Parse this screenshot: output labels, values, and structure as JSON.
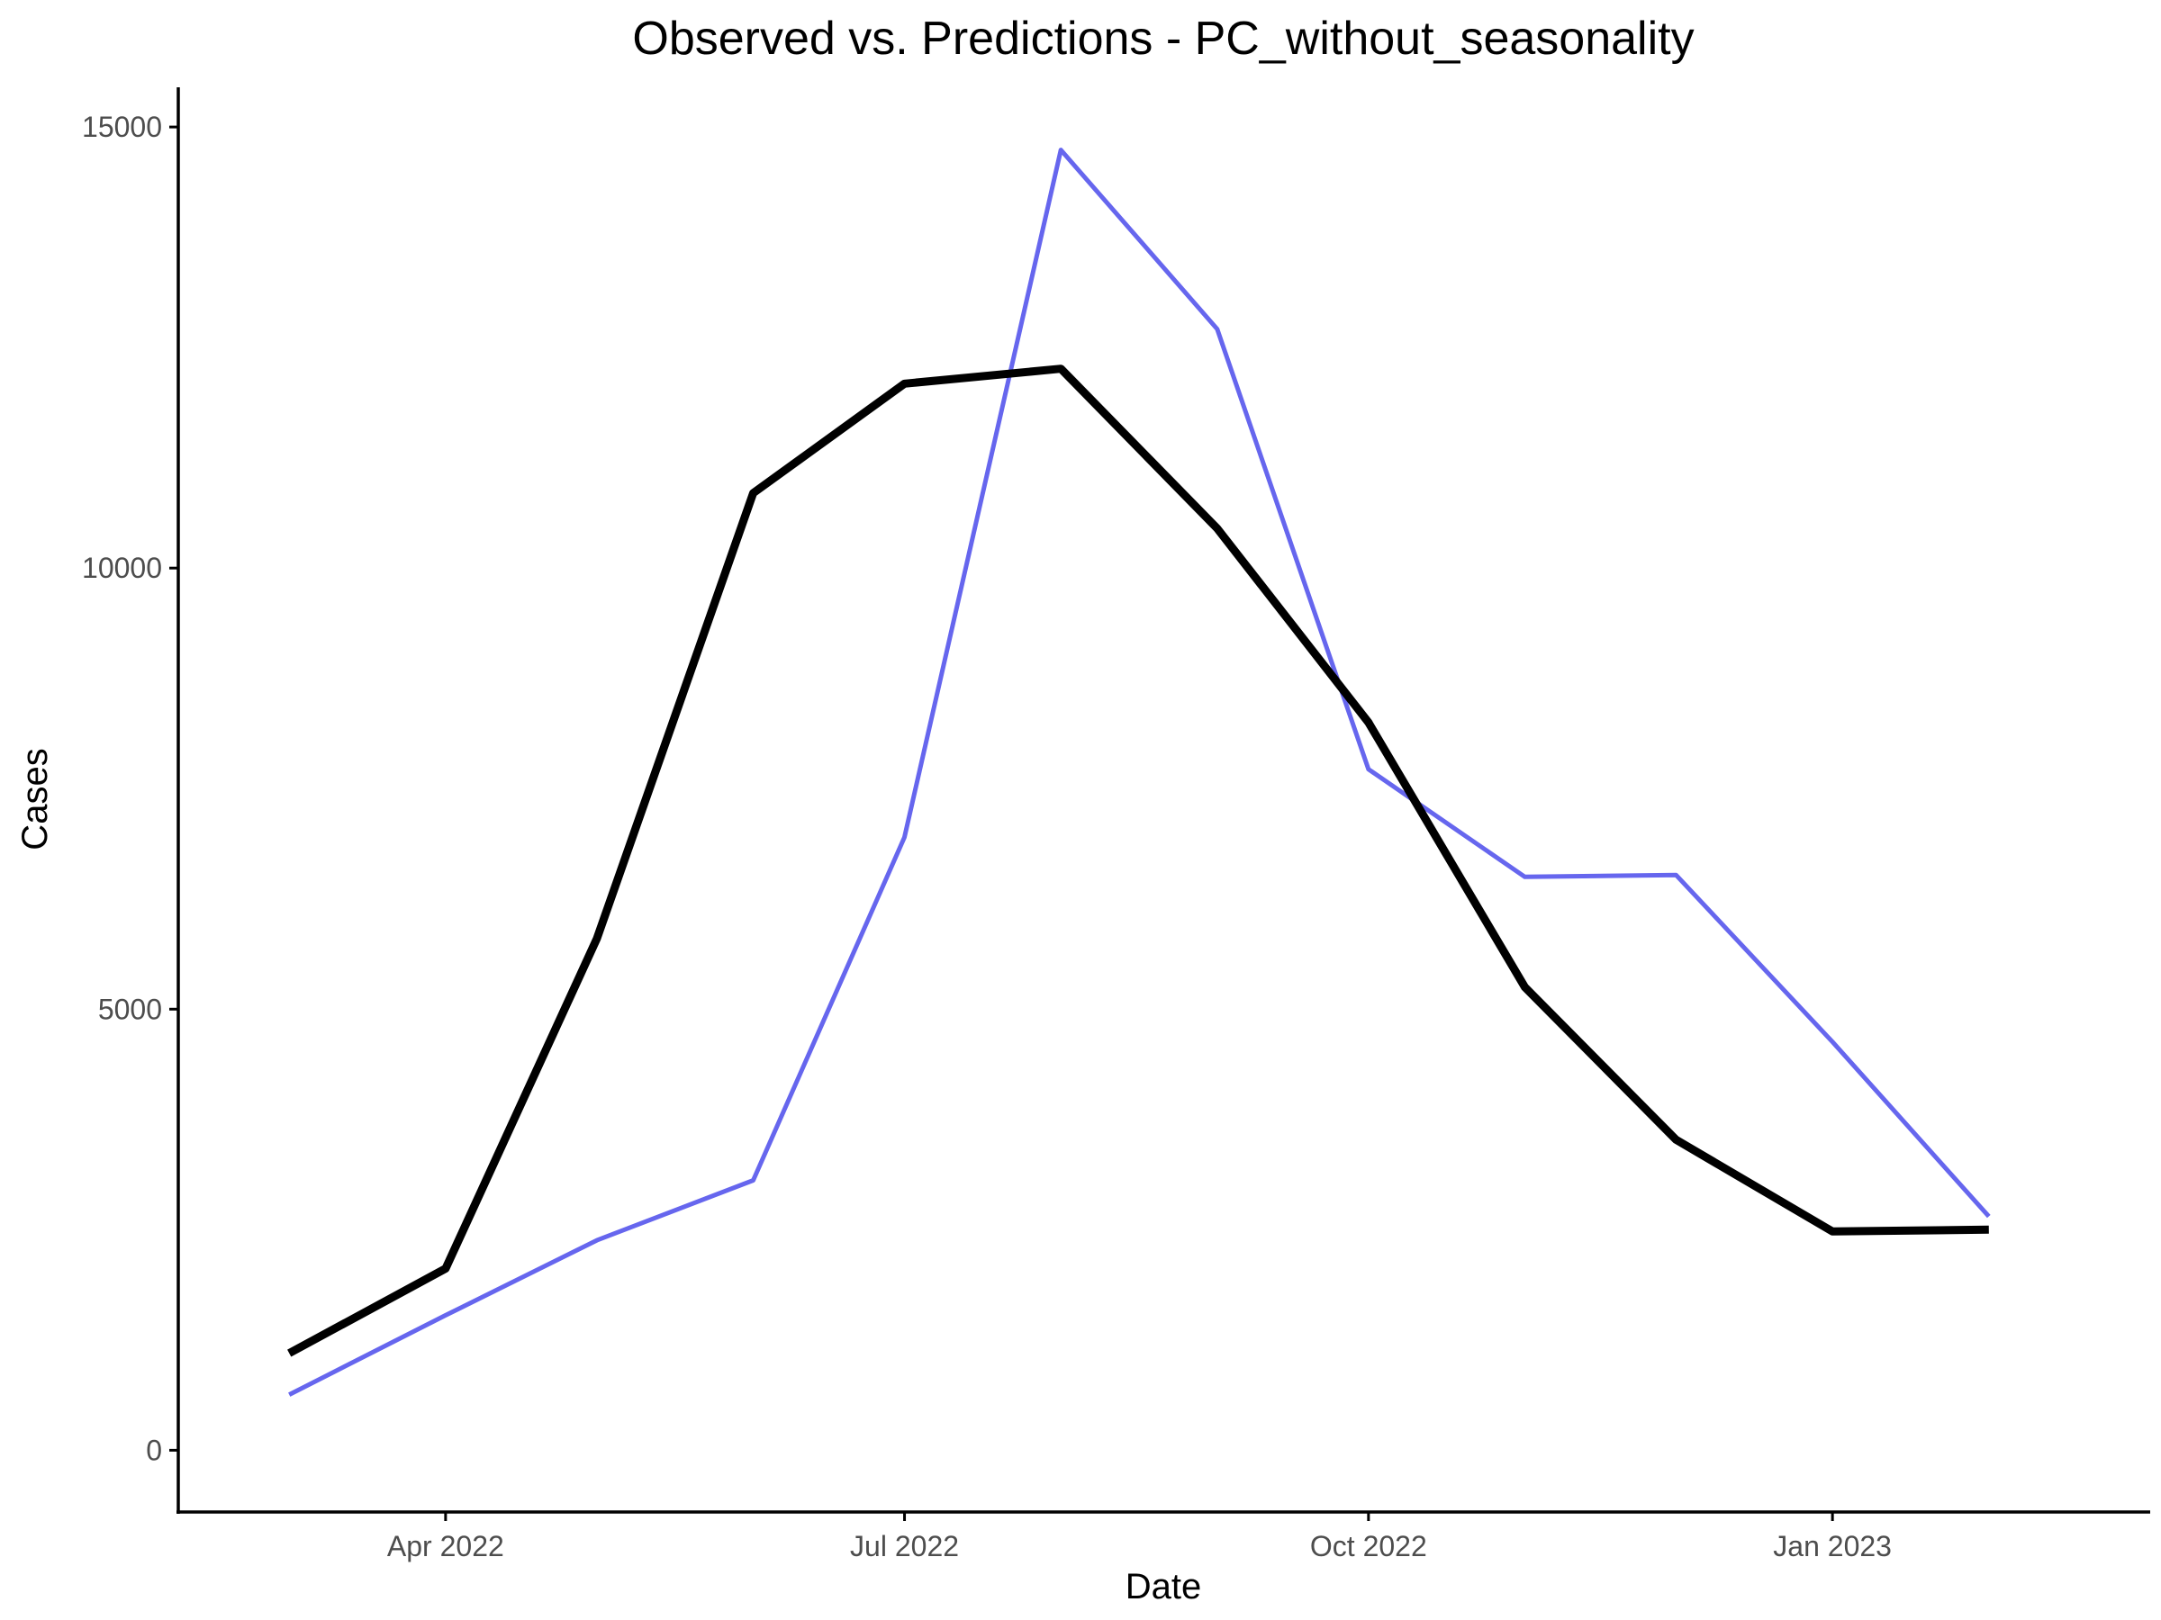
{
  "chart_data": {
    "type": "line",
    "title": "Observed vs. Predictions - PC_without_seasonality",
    "xlabel": "Date",
    "ylabel": "Cases",
    "x_type": "date",
    "xlim": [
      "2022-02-07",
      "2023-03-05"
    ],
    "ylim": [
      -700,
      15450
    ],
    "x_ticks": [
      {
        "date": "2022-04-01",
        "label": "Apr 2022"
      },
      {
        "date": "2022-07-01",
        "label": "Jul 2022"
      },
      {
        "date": "2022-10-01",
        "label": "Oct 2022"
      },
      {
        "date": "2023-01-01",
        "label": "Jan 2023"
      }
    ],
    "y_ticks": [
      {
        "value": 0,
        "label": "0"
      },
      {
        "value": 5000,
        "label": "5000"
      },
      {
        "value": 10000,
        "label": "10000"
      },
      {
        "value": 15000,
        "label": "15000"
      }
    ],
    "grid": false,
    "legend": "none",
    "x": [
      "2022-03-01",
      "2022-04-01",
      "2022-05-01",
      "2022-06-01",
      "2022-07-01",
      "2022-08-01",
      "2022-09-01",
      "2022-10-01",
      "2022-11-01",
      "2022-12-01",
      "2023-01-01",
      "2023-02-01"
    ],
    "series": [
      {
        "color": "#6666ee",
        "stroke_width": 5,
        "values": [
          630,
          1530,
          2380,
          3060,
          6950,
          14740,
          12710,
          7720,
          6500,
          6520,
          4630,
          2650
        ]
      },
      {
        "color": "#000000",
        "stroke_width": 9,
        "values": [
          1100,
          2060,
          5800,
          10850,
          12090,
          12260,
          10450,
          8250,
          5250,
          3520,
          2480,
          2500
        ]
      }
    ]
  }
}
